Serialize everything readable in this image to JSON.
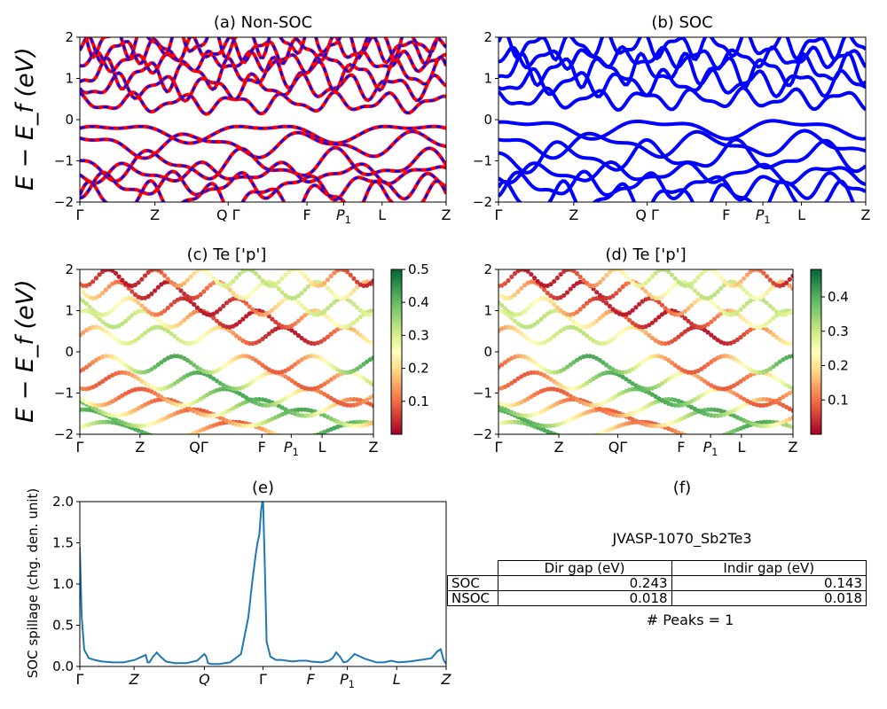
{
  "figure": {
    "row_ylabel": "E − E_f (eV)",
    "band_kpath": [
      "Γ",
      "Z",
      "Q Γ",
      "F",
      "P1",
      "L",
      "Z"
    ],
    "proj_kpath": [
      "Γ",
      "Z",
      "QΓ",
      "F",
      "P1",
      "L",
      "Z"
    ],
    "spill_kpath": [
      "Γ",
      "Z",
      "Q",
      "Γ",
      "F",
      "P1",
      "L",
      "Z"
    ]
  },
  "chart_data": [
    {
      "id": "a",
      "type": "line",
      "title": "(a) Non-SOC",
      "ylabel": "E − E_f (eV)",
      "ylim": [
        -2,
        2
      ],
      "yticks": [
        -2,
        -1,
        0,
        1,
        2
      ],
      "xticklabels": [
        "Γ",
        "Z",
        "Q Γ",
        "F",
        "P1",
        "L",
        "Z"
      ],
      "series": [],
      "bands_valence_approx_eV": [
        -0.3,
        -0.6,
        -1.1,
        -1.3,
        -1.6,
        -1.9
      ],
      "bands_conduction_approx_eV": [
        0.4,
        0.8,
        1.1,
        1.4,
        1.7,
        1.9
      ],
      "colors": [
        "#ff0000",
        "#0000ff"
      ]
    },
    {
      "id": "b",
      "type": "line",
      "title": "(b) SOC",
      "ylim": [
        -2,
        2
      ],
      "yticks": [
        -2,
        -1,
        0,
        1,
        2
      ],
      "xticklabels": [
        "Γ",
        "Z",
        "Q Γ",
        "F",
        "P1",
        "L",
        "Z"
      ],
      "bands_valence_approx_eV": [
        -0.2,
        -0.6,
        -0.9,
        -1.3,
        -1.6,
        -1.9
      ],
      "bands_conduction_approx_eV": [
        0.5,
        0.9,
        1.2,
        1.5,
        1.8
      ],
      "colors": [
        "#0000ff"
      ]
    },
    {
      "id": "c",
      "type": "scatter",
      "title": "(c)  Te ['p']",
      "ylabel": "E − E_f (eV)",
      "ylim": [
        -2,
        2
      ],
      "yticks": [
        -2,
        -1,
        0,
        1,
        2
      ],
      "xticklabels": [
        "Γ",
        "Z",
        "QΓ",
        "F",
        "P1",
        "L",
        "Z"
      ],
      "colorbar": {
        "min": 0.0,
        "max": 0.5,
        "ticks": [
          "0.1",
          "0.2",
          "0.3",
          "0.4",
          "0.5"
        ],
        "cmap": "RdYlGn"
      }
    },
    {
      "id": "d",
      "type": "scatter",
      "title": "(d) Te ['p']",
      "ylim": [
        -2,
        2
      ],
      "yticks": [
        -2,
        -1,
        0,
        1,
        2
      ],
      "xticklabels": [
        "Γ",
        "Z",
        "QΓ",
        "F",
        "P1",
        "L",
        "Z"
      ],
      "colorbar": {
        "min": 0.0,
        "max": 0.48,
        "ticks": [
          "0.1",
          "0.2",
          "0.3",
          "0.4"
        ],
        "cmap": "RdYlGn"
      }
    },
    {
      "id": "e",
      "type": "line",
      "title": "(e)",
      "ylabel": "SOC spillage (chg. den. unit)",
      "ylim": [
        0,
        2.0
      ],
      "yticks": [
        "0.0",
        "0.5",
        "1.0",
        "1.5",
        "2.0"
      ],
      "xticklabels": [
        "Γ",
        "Z",
        "Q",
        "Γ",
        "F",
        "P1",
        "L",
        "Z"
      ],
      "x": [
        0,
        0.005,
        0.012,
        0.025,
        0.04,
        0.06,
        0.09,
        0.12,
        0.15,
        0.17,
        0.18,
        0.185,
        0.19,
        0.2,
        0.21,
        0.22,
        0.235,
        0.26,
        0.29,
        0.32,
        0.34,
        0.345,
        0.35,
        0.36,
        0.38,
        0.41,
        0.44,
        0.46,
        0.47,
        0.48,
        0.485,
        0.49,
        0.495,
        0.5,
        0.505,
        0.51,
        0.52,
        0.535,
        0.55,
        0.58,
        0.6,
        0.62,
        0.63,
        0.66,
        0.68,
        0.69,
        0.7,
        0.71,
        0.72,
        0.73,
        0.75,
        0.78,
        0.81,
        0.83,
        0.85,
        0.87,
        0.9,
        0.93,
        0.96,
        0.975,
        0.985,
        0.993,
        1.0
      ],
      "y": [
        1.45,
        0.6,
        0.2,
        0.1,
        0.08,
        0.06,
        0.05,
        0.05,
        0.08,
        0.12,
        0.14,
        0.05,
        0.05,
        0.12,
        0.17,
        0.12,
        0.06,
        0.04,
        0.04,
        0.07,
        0.15,
        0.12,
        0.04,
        0.03,
        0.03,
        0.05,
        0.15,
        0.6,
        1.0,
        1.35,
        1.5,
        1.6,
        1.9,
        2.05,
        1.2,
        0.3,
        0.12,
        0.08,
        0.08,
        0.06,
        0.07,
        0.07,
        0.06,
        0.05,
        0.07,
        0.1,
        0.17,
        0.12,
        0.05,
        0.06,
        0.15,
        0.09,
        0.05,
        0.05,
        0.07,
        0.05,
        0.06,
        0.08,
        0.1,
        0.18,
        0.21,
        0.08,
        0.03
      ],
      "color": "#1f77b4"
    },
    {
      "id": "f",
      "type": "table",
      "title": "(f)",
      "subtitle": "JVASP-1070_Sb2Te3",
      "columns": [
        "Dir gap (eV)",
        "Indir gap (eV)"
      ],
      "rows": [
        {
          "label": "SOC",
          "values": [
            "0.243",
            "0.143"
          ]
        },
        {
          "label": "NSOC",
          "values": [
            "0.018",
            "0.018"
          ]
        }
      ],
      "footer": "# Peaks = 1"
    }
  ]
}
